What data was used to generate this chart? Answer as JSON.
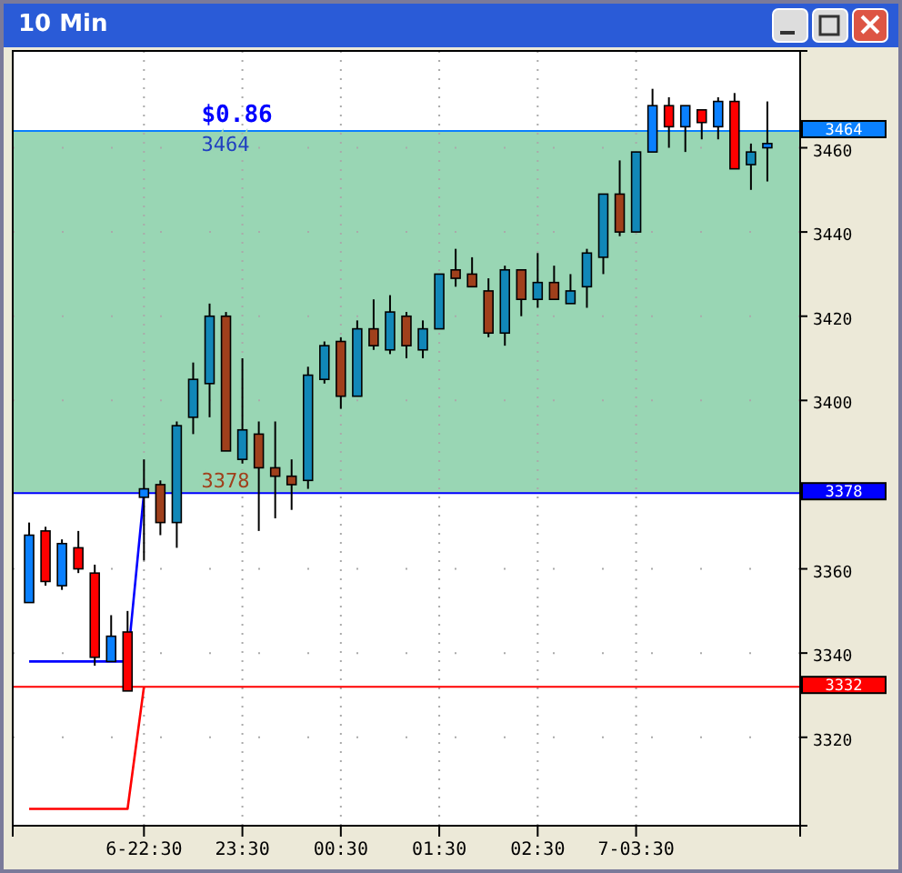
{
  "chart_data": {
    "type": "candlestick",
    "title": "10 Min",
    "categories": [
      null,
      null,
      null,
      null,
      null,
      null,
      null,
      "6-22:30",
      null,
      null,
      null,
      null,
      null,
      "23:30",
      null,
      null,
      null,
      null,
      null,
      "00:30",
      null,
      null,
      null,
      null,
      null,
      "01:30",
      null,
      null,
      null,
      null,
      null,
      "02:30",
      null,
      null,
      null,
      null,
      null,
      "7-03:30",
      null,
      null,
      null,
      null,
      null,
      null,
      null,
      null
    ],
    "ohlc": [
      [
        3352,
        3371,
        3352,
        3368
      ],
      [
        3369,
        3370,
        3356,
        3357
      ],
      [
        3356,
        3367,
        3355,
        3366
      ],
      [
        3365,
        3369,
        3359,
        3360
      ],
      [
        3359,
        3361,
        3337,
        3339
      ],
      [
        3338,
        3349,
        3338,
        3344
      ],
      [
        3345,
        3350,
        3331,
        3331
      ],
      [
        3377,
        3386,
        3362,
        3379
      ],
      [
        3380,
        3381,
        3368,
        3371
      ],
      [
        3371,
        3395,
        3365,
        3394
      ],
      [
        3396,
        3409,
        3392,
        3405
      ],
      [
        3404,
        3423,
        3396,
        3420
      ],
      [
        3420,
        3421,
        3388,
        3388
      ],
      [
        3386,
        3410,
        3385,
        3393
      ],
      [
        3392,
        3395,
        3369,
        3384
      ],
      [
        3384,
        3395,
        3372,
        3382
      ],
      [
        3382,
        3386,
        3374,
        3380
      ],
      [
        3381,
        3408,
        3379,
        3406
      ],
      [
        3405,
        3414,
        3404,
        3413
      ],
      [
        3414,
        3415,
        3398,
        3401
      ],
      [
        3401,
        3419,
        3401,
        3417
      ],
      [
        3417,
        3424,
        3412,
        3413
      ],
      [
        3412,
        3425,
        3411,
        3421
      ],
      [
        3420,
        3421,
        3410,
        3413
      ],
      [
        3412,
        3419,
        3410,
        3417
      ],
      [
        3417,
        3430,
        3417,
        3430
      ],
      [
        3431,
        3436,
        3427,
        3429
      ],
      [
        3430,
        3434,
        3427,
        3427
      ],
      [
        3426,
        3429,
        3415,
        3416
      ],
      [
        3416,
        3432,
        3413,
        3431
      ],
      [
        3431,
        3431,
        3420,
        3424
      ],
      [
        3424,
        3435,
        3422,
        3428
      ],
      [
        3428,
        3432,
        3424,
        3424
      ],
      [
        3423,
        3430,
        3423,
        3426
      ],
      [
        3427,
        3436,
        3422,
        3435
      ],
      [
        3434,
        3449,
        3430,
        3449
      ],
      [
        3449,
        3457,
        3439,
        3440
      ],
      [
        3440,
        3459,
        3440,
        3459
      ],
      [
        3459,
        3474,
        3459,
        3470
      ],
      [
        3470,
        3472,
        3460,
        3465
      ],
      [
        3465,
        3470,
        3459,
        3470
      ],
      [
        3469,
        3469,
        3462,
        3466
      ],
      [
        3465,
        3472,
        3462,
        3471
      ],
      [
        3471,
        3473,
        3455,
        3455
      ],
      [
        3456,
        3461,
        3450,
        3459
      ],
      [
        3460,
        3471,
        3452,
        3461
      ]
    ],
    "colors": [
      "#0a80ff",
      "#ff0000",
      "#0a80ff",
      "#ff0000",
      "#ff0000",
      "#0a80ff",
      "#ff0000",
      "#0a80ff",
      "#a0401c",
      "#1187b8",
      "#1187b8",
      "#1187b8",
      "#a0401c",
      "#1187b8",
      "#a0401c",
      "#a0401c",
      "#a0401c",
      "#1187b8",
      "#1187b8",
      "#a0401c",
      "#1187b8",
      "#a0401c",
      "#1187b8",
      "#a0401c",
      "#1187b8",
      "#1187b8",
      "#a0401c",
      "#a0401c",
      "#a0401c",
      "#1187b8",
      "#a0401c",
      "#1187b8",
      "#a0401c",
      "#1187b8",
      "#1187b8",
      "#1187b8",
      "#a0401c",
      "#1187b8",
      "#0a80ff",
      "#ff0000",
      "#0a80ff",
      "#ff0000",
      "#0a80ff",
      "#ff0000",
      "#1187b8",
      "#0a80ff"
    ],
    "series": [
      {
        "type": "line",
        "color": "#0000ff",
        "values": [
          3338,
          3338,
          3338,
          3338,
          3338,
          3338,
          3338,
          3378,
          null,
          null,
          null,
          null,
          null,
          null,
          null,
          null,
          null,
          null,
          null,
          null,
          null,
          null,
          null,
          null,
          null,
          null,
          null,
          null,
          null,
          null,
          null,
          null,
          null,
          null,
          null,
          null,
          null,
          null,
          null,
          null,
          null,
          null,
          null,
          null,
          null,
          null
        ]
      },
      {
        "type": "line",
        "color": "#ff0000",
        "values": [
          3303,
          3303,
          3303,
          3303,
          3303,
          3303,
          3303,
          3332,
          null,
          null,
          null,
          null,
          null,
          null,
          null,
          null,
          null,
          null,
          null,
          null,
          null,
          null,
          null,
          null,
          null,
          null,
          null,
          null,
          null,
          null,
          null,
          null,
          null,
          null,
          null,
          null,
          null,
          null,
          null,
          null,
          null,
          null,
          null,
          null,
          null,
          null
        ]
      }
    ],
    "ylim": [
      3299,
      3483
    ],
    "yticks": [
      3320,
      3340,
      3360,
      3400,
      3420,
      3440,
      3460
    ],
    "grid": true,
    "bands": [
      {
        "axis": "y",
        "from": 3378,
        "to": 3464,
        "label": "$0.86",
        "color": "#99d6b4"
      }
    ],
    "ref_lines": [
      {
        "axis": "y",
        "value": 3464,
        "label": "3464",
        "color": "#0a80ff"
      },
      {
        "axis": "y",
        "value": 3378,
        "label": "3378",
        "color": "#0000ff"
      },
      {
        "axis": "y",
        "value": 3332,
        "label": "3332",
        "color": "#ff0000"
      }
    ],
    "annotations": [
      {
        "text": "3464",
        "y": 3464
      },
      {
        "text": "3378",
        "y": 3378
      }
    ]
  }
}
